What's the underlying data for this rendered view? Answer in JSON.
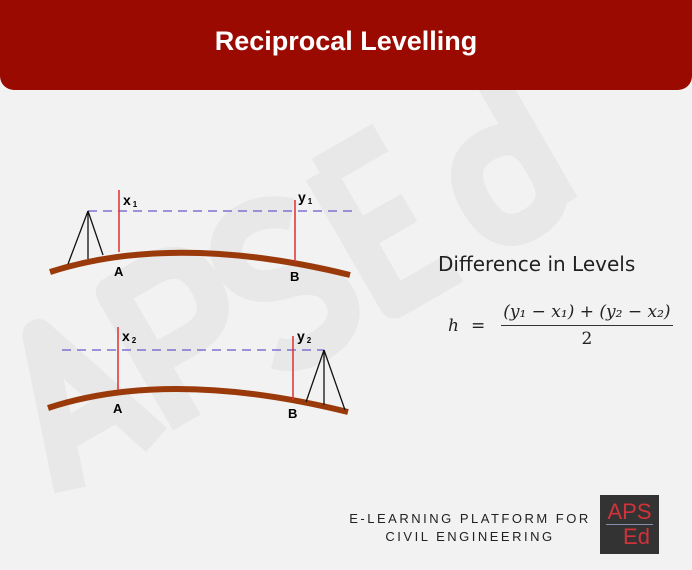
{
  "header": {
    "title": "Reciprocal Levelling"
  },
  "watermark": "APSEd",
  "diagram": {
    "top": {
      "staff_a_reading": "x",
      "staff_a_sub": "1",
      "staff_b_reading": "y",
      "staff_b_sub": "1",
      "point_a": "A",
      "point_b": "B"
    },
    "bottom": {
      "staff_a_reading": "x",
      "staff_a_sub": "2",
      "staff_b_reading": "y",
      "staff_b_sub": "2",
      "point_a": "A",
      "point_b": "B"
    },
    "colors": {
      "ground": "#9a3a0a",
      "staff": "#e03030",
      "line_of_sight": "#6a5acd",
      "instrument": "#111111"
    }
  },
  "formula": {
    "heading": "Difference in Levels",
    "lhs": "h",
    "equals": "=",
    "numerator": "(y₁ − x₁) + (y₂ − x₂)",
    "denominator": "2"
  },
  "footer": {
    "line1": "E-LEARNING PLATFORM FOR",
    "line2": "CIVIL ENGINEERING"
  },
  "logo": {
    "line1": "APS",
    "line2": "Ed"
  }
}
